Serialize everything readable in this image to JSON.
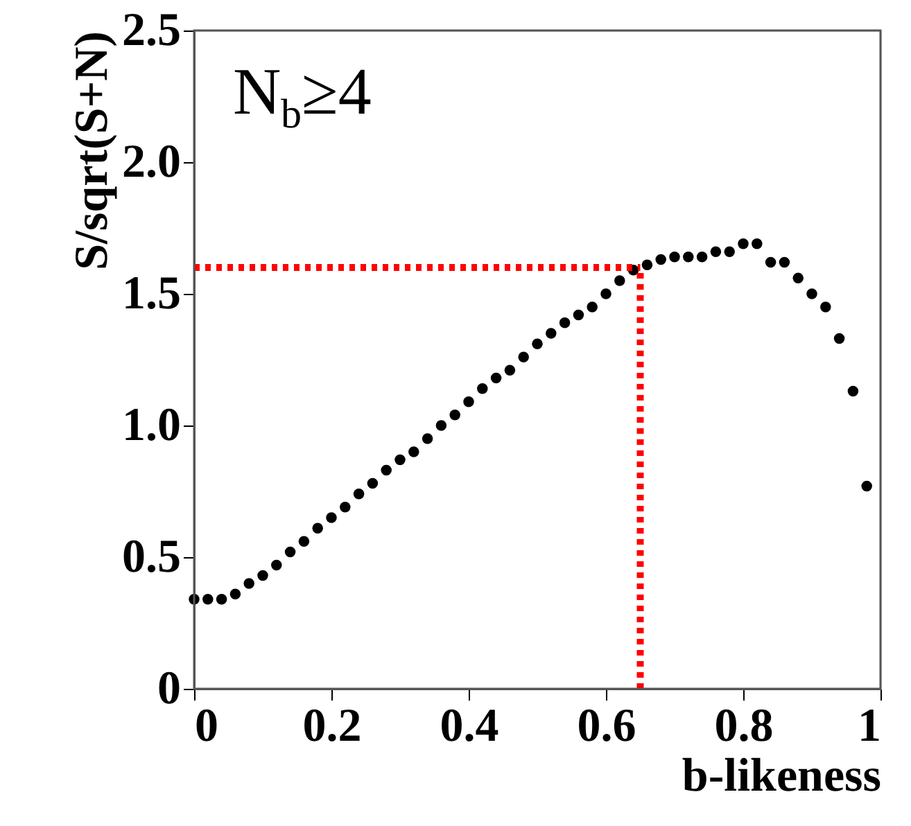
{
  "chart_data": {
    "type": "scatter",
    "xlabel": "b-likeness",
    "ylabel": "S/sqrt(S+N)",
    "x": [
      0.0,
      0.02,
      0.04,
      0.06,
      0.08,
      0.1,
      0.12,
      0.14,
      0.16,
      0.18,
      0.2,
      0.22,
      0.24,
      0.26,
      0.28,
      0.3,
      0.32,
      0.34,
      0.36,
      0.38,
      0.4,
      0.42,
      0.44,
      0.46,
      0.48,
      0.5,
      0.52,
      0.54,
      0.56,
      0.58,
      0.6,
      0.62,
      0.64,
      0.66,
      0.68,
      0.7,
      0.72,
      0.74,
      0.76,
      0.78,
      0.8,
      0.82,
      0.84,
      0.86,
      0.88,
      0.9,
      0.92,
      0.94,
      0.96,
      0.98
    ],
    "series": [
      {
        "color": "#000000",
        "values": [
          0.34,
          0.34,
          0.34,
          0.36,
          0.4,
          0.43,
          0.47,
          0.52,
          0.56,
          0.61,
          0.65,
          0.69,
          0.74,
          0.78,
          0.83,
          0.87,
          0.9,
          0.95,
          1.0,
          1.04,
          1.09,
          1.14,
          1.18,
          1.21,
          1.26,
          1.31,
          1.35,
          1.39,
          1.42,
          1.45,
          1.5,
          1.55,
          1.59,
          1.61,
          1.63,
          1.64,
          1.64,
          1.64,
          1.66,
          1.66,
          1.69,
          1.69,
          1.62,
          1.62,
          1.56,
          1.5,
          1.45,
          1.33,
          1.13,
          0.77
        ]
      }
    ],
    "marker": "circle",
    "xlim": [
      0,
      1
    ],
    "xticks": [
      0,
      0.2,
      0.4,
      0.6,
      0.8,
      1
    ],
    "ylim": [
      0,
      2.5
    ],
    "yticks": [
      0,
      0.5,
      {
        "value": 1,
        "label": "1.0"
      },
      1.5,
      {
        "value": 2,
        "label": "2.0"
      },
      2.5
    ],
    "ref_lines": [
      {
        "axis": "y",
        "value": 1.6,
        "color": "#ff0000",
        "line_style": "dotted"
      },
      {
        "axis": "x",
        "value": 0.65,
        "color": "#ff0000",
        "line_style": "dotted"
      }
    ],
    "annotations": [
      "N$_{b}$≥4"
    ],
    "grid": false
  }
}
